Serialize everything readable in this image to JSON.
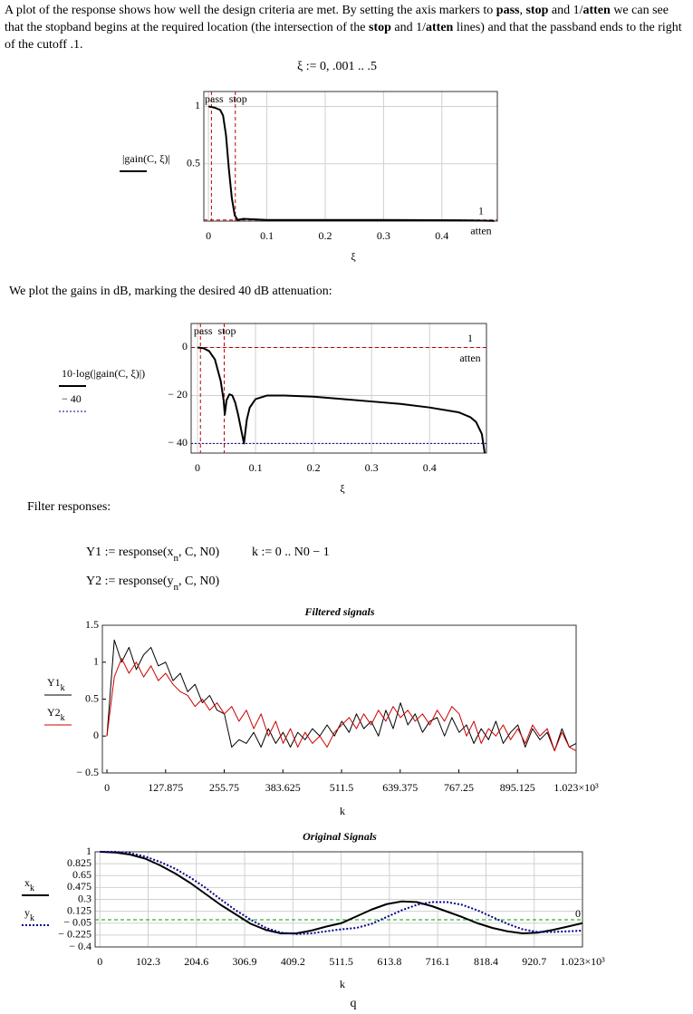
{
  "intro": {
    "runs": [
      {
        "text": "A plot of the response shows how well the design criteria are met. By setting the axis markers to "
      },
      {
        "text": "pass",
        "bold": true
      },
      {
        "text": ", "
      },
      {
        "text": "stop",
        "bold": true
      },
      {
        "text": " and 1/"
      },
      {
        "text": "atten",
        "bold": true
      },
      {
        "text": " we can see that the stopband begins at the required location (the intersection of the "
      },
      {
        "text": "stop",
        "bold": true
      },
      {
        "text": " and 1/"
      },
      {
        "text": "atten",
        "bold": true
      },
      {
        "text": " lines) and that the passband ends to the right of the cutoff .1."
      }
    ]
  },
  "equation_xi": {
    "runs": [
      {
        "text": "ξ := 0, .001 .. .5"
      }
    ]
  },
  "text_db": "We plot the gains in dB, marking the desired 40 dB attenuation:",
  "text_filter": "Filter responses:",
  "equations": [
    {
      "runs": [
        {
          "text": "Y1 := response(x"
        },
        {
          "text": "n",
          "sub": true
        },
        {
          "text": ", C, N0)"
        }
      ]
    },
    {
      "runs": [
        {
          "text": "k := 0 .. N0 − 1"
        }
      ]
    },
    {
      "runs": [
        {
          "text": "Y2 := response(y"
        },
        {
          "text": "n",
          "sub": true
        },
        {
          "text": ", C, N0)"
        }
      ]
    }
  ],
  "footer": "q",
  "chart_data": [
    {
      "type": "line",
      "xlabel": "ξ",
      "xlim": [
        -0.008,
        0.495
      ],
      "ylim": [
        0,
        1.13
      ],
      "grid": true,
      "xticks": [
        0,
        0.1,
        0.2,
        0.3,
        0.4
      ],
      "yticks": [
        0.5,
        1
      ],
      "series": [
        {
          "name": "|gain(C, ξ)|",
          "color": "#000000",
          "width": 2,
          "x": [
            0,
            0.01,
            0.02,
            0.025,
            0.03,
            0.035,
            0.04,
            0.045,
            0.05,
            0.06,
            0.1,
            0.2,
            0.3,
            0.4,
            0.45,
            0.49
          ],
          "values": [
            1.0,
            0.99,
            0.97,
            0.92,
            0.75,
            0.45,
            0.2,
            0.05,
            0.01,
            0.02,
            0.01,
            0.01,
            0.01,
            0.008,
            0.006,
            0.002
          ]
        }
      ],
      "vmarkers": [
        {
          "name": "pass",
          "value": 0.005,
          "color": "#c00000"
        },
        {
          "name": "stop",
          "value": 0.046,
          "color": "#c00000"
        }
      ],
      "hmarkers": [
        {
          "value": 0.01,
          "numerator": "1",
          "denominator": "atten",
          "color": "#c00000"
        }
      ]
    },
    {
      "type": "line",
      "xlim": [
        -0.011,
        0.498
      ],
      "ylim": [
        -44,
        10
      ],
      "grid": true,
      "xlabel": "ξ",
      "xticks": [
        0,
        0.1,
        0.2,
        0.3,
        0.4
      ],
      "yticks": [
        {
          "value": -40,
          "label": "− 40"
        },
        {
          "value": -20,
          "label": "− 20"
        },
        0
      ],
      "series": [
        {
          "name": "10·log(|gain(C, ξ)|)",
          "color": "#000000",
          "width": 2,
          "x": [
            0,
            0.01,
            0.02,
            0.03,
            0.04,
            0.045,
            0.047,
            0.05,
            0.055,
            0.06,
            0.065,
            0.07,
            0.075,
            0.08,
            0.085,
            0.09,
            0.1,
            0.12,
            0.15,
            0.2,
            0.25,
            0.3,
            0.35,
            0.4,
            0.45,
            0.47,
            0.48,
            0.49,
            0.495
          ],
          "values": [
            0,
            -0.3,
            -1.5,
            -5,
            -14,
            -22,
            -28,
            -22,
            -19.5,
            -20,
            -23,
            -28,
            -34,
            -40,
            -30,
            -25,
            -21.5,
            -20,
            -20,
            -20.5,
            -21.5,
            -22.5,
            -23.5,
            -25,
            -27,
            -29,
            -31,
            -36,
            -44
          ]
        },
        {
          "name": "− 40",
          "color": "#00008b",
          "width": 1,
          "dash": "dotted",
          "x": [
            -0.011,
            0.498
          ],
          "values": [
            -40,
            -40
          ]
        }
      ],
      "vmarkers": [
        {
          "name": "pass",
          "value": 0.005,
          "color": "#c00000"
        },
        {
          "name": "stop",
          "value": 0.046,
          "color": "#c00000"
        }
      ],
      "hmarkers": [
        {
          "value": 0,
          "numerator": "1",
          "denominator": "atten",
          "color": "#c00000"
        }
      ]
    },
    {
      "type": "line",
      "title": "Filtered signals",
      "xlabel": "k",
      "xlim": [
        -10,
        1023
      ],
      "ylim": [
        -0.5,
        1.5
      ],
      "grid": false,
      "xticks": [
        0,
        127.875,
        255.75,
        383.625,
        511.5,
        639.375,
        767.25,
        895.125,
        {
          "value": 1023,
          "label": "1.023×10³"
        }
      ],
      "yticks": [
        {
          "value": -0.5,
          "label": "− 0.5"
        },
        0,
        0.5,
        1,
        1.5
      ],
      "series": [
        {
          "name": "Y1",
          "sub": "k",
          "color": "#000000",
          "width": 1,
          "x": [
            0,
            16,
            32,
            48,
            64,
            80,
            96,
            112,
            128,
            144,
            160,
            176,
            192,
            208,
            224,
            240,
            256,
            272,
            288,
            304,
            320,
            336,
            352,
            368,
            384,
            400,
            416,
            432,
            448,
            464,
            480,
            496,
            512,
            528,
            544,
            560,
            576,
            592,
            608,
            624,
            640,
            656,
            672,
            688,
            704,
            720,
            736,
            752,
            768,
            784,
            800,
            816,
            832,
            848,
            864,
            880,
            896,
            912,
            928,
            944,
            960,
            976,
            992,
            1008,
            1023
          ],
          "values": [
            0,
            1.3,
            1.0,
            1.2,
            0.9,
            1.1,
            1.2,
            0.95,
            1.0,
            0.75,
            0.85,
            0.6,
            0.7,
            0.45,
            0.55,
            0.35,
            0.3,
            -0.15,
            -0.05,
            -0.1,
            0.05,
            -0.15,
            0.1,
            -0.1,
            0.05,
            -0.15,
            0.05,
            -0.05,
            0.1,
            0.0,
            0.15,
            0.0,
            0.2,
            0.05,
            0.3,
            0.1,
            0.2,
            0.0,
            0.35,
            0.1,
            0.45,
            0.15,
            0.3,
            0.05,
            0.2,
            0.25,
            0.0,
            0.25,
            0.05,
            0.15,
            -0.1,
            0.1,
            -0.05,
            0.2,
            -0.1,
            0.05,
            0.15,
            -0.15,
            0.1,
            -0.05,
            0.05,
            -0.2,
            0.1,
            -0.15,
            -0.1
          ]
        },
        {
          "name": "Y2",
          "sub": "k",
          "color": "#cc0000",
          "width": 1,
          "x": [
            0,
            16,
            32,
            48,
            64,
            80,
            96,
            112,
            128,
            144,
            160,
            176,
            192,
            208,
            224,
            240,
            256,
            272,
            288,
            304,
            320,
            336,
            352,
            368,
            384,
            400,
            416,
            432,
            448,
            464,
            480,
            496,
            512,
            528,
            544,
            560,
            576,
            592,
            608,
            624,
            640,
            656,
            672,
            688,
            704,
            720,
            736,
            752,
            768,
            784,
            800,
            816,
            832,
            848,
            864,
            880,
            896,
            912,
            928,
            944,
            960,
            976,
            992,
            1008,
            1023
          ],
          "values": [
            0,
            0.8,
            1.05,
            0.85,
            1.0,
            0.8,
            0.95,
            0.75,
            0.85,
            0.7,
            0.6,
            0.55,
            0.4,
            0.5,
            0.35,
            0.45,
            0.3,
            0.4,
            0.2,
            0.35,
            0.1,
            0.3,
            0.0,
            0.2,
            -0.1,
            0.1,
            -0.15,
            0.05,
            -0.1,
            0.0,
            -0.15,
            0.05,
            0.15,
            0.25,
            0.1,
            0.3,
            0.15,
            0.35,
            0.2,
            0.4,
            0.25,
            0.35,
            0.2,
            0.3,
            0.15,
            0.35,
            0.2,
            0.4,
            0.3,
            0.0,
            0.2,
            -0.1,
            0.1,
            0.0,
            0.15,
            -0.05,
            0.1,
            -0.1,
            0.15,
            0.0,
            0.1,
            -0.2,
            0.05,
            -0.15,
            -0.2
          ]
        }
      ]
    },
    {
      "type": "line",
      "title": "Original Signals",
      "xlabel": "k",
      "xlim": [
        -10,
        1023
      ],
      "ylim": [
        -0.4,
        1
      ],
      "grid": true,
      "xticks": [
        0,
        102.3,
        204.6,
        306.9,
        409.2,
        511.5,
        613.8,
        716.1,
        818.4,
        920.7,
        {
          "value": 1023,
          "label": "1.023×10³"
        }
      ],
      "yticks": [
        {
          "value": -0.4,
          "label": "− 0.4"
        },
        {
          "value": -0.225,
          "label": "− 0.225"
        },
        {
          "value": -0.05,
          "label": "− 0.05"
        },
        0.125,
        0.3,
        0.475,
        0.65,
        0.825,
        1
      ],
      "series": [
        {
          "name": "x",
          "sub": "k",
          "color": "#000000",
          "width": 2,
          "x": [
            0,
            32,
            64,
            96,
            128,
            160,
            192,
            224,
            256,
            288,
            320,
            352,
            384,
            416,
            448,
            480,
            512,
            544,
            576,
            608,
            640,
            672,
            704,
            736,
            768,
            800,
            832,
            864,
            896,
            928,
            960,
            992,
            1023
          ],
          "values": [
            1,
            0.99,
            0.96,
            0.9,
            0.8,
            0.68,
            0.54,
            0.38,
            0.22,
            0.08,
            -0.06,
            -0.15,
            -0.2,
            -0.2,
            -0.16,
            -0.1,
            -0.05,
            0.05,
            0.15,
            0.23,
            0.27,
            0.26,
            0.2,
            0.12,
            0.04,
            -0.05,
            -0.12,
            -0.17,
            -0.2,
            -0.19,
            -0.15,
            -0.1,
            -0.05
          ]
        },
        {
          "name": "y",
          "sub": "k",
          "color": "#00008b",
          "width": 2,
          "dash": "dotted",
          "x": [
            0,
            32,
            64,
            96,
            128,
            160,
            192,
            224,
            256,
            288,
            320,
            352,
            384,
            416,
            448,
            480,
            512,
            544,
            576,
            608,
            640,
            672,
            704,
            736,
            768,
            800,
            832,
            864,
            896,
            928,
            960,
            992,
            1023
          ],
          "values": [
            1,
            1.0,
            0.98,
            0.93,
            0.85,
            0.75,
            0.62,
            0.47,
            0.3,
            0.14,
            0.0,
            -0.12,
            -0.19,
            -0.21,
            -0.2,
            -0.17,
            -0.14,
            -0.12,
            -0.06,
            0.04,
            0.14,
            0.22,
            0.26,
            0.26,
            0.22,
            0.14,
            0.04,
            -0.06,
            -0.14,
            -0.18,
            -0.18,
            -0.17,
            -0.16
          ]
        }
      ],
      "hmarkers": [
        {
          "value": 0,
          "color": "#00a000"
        }
      ]
    }
  ]
}
